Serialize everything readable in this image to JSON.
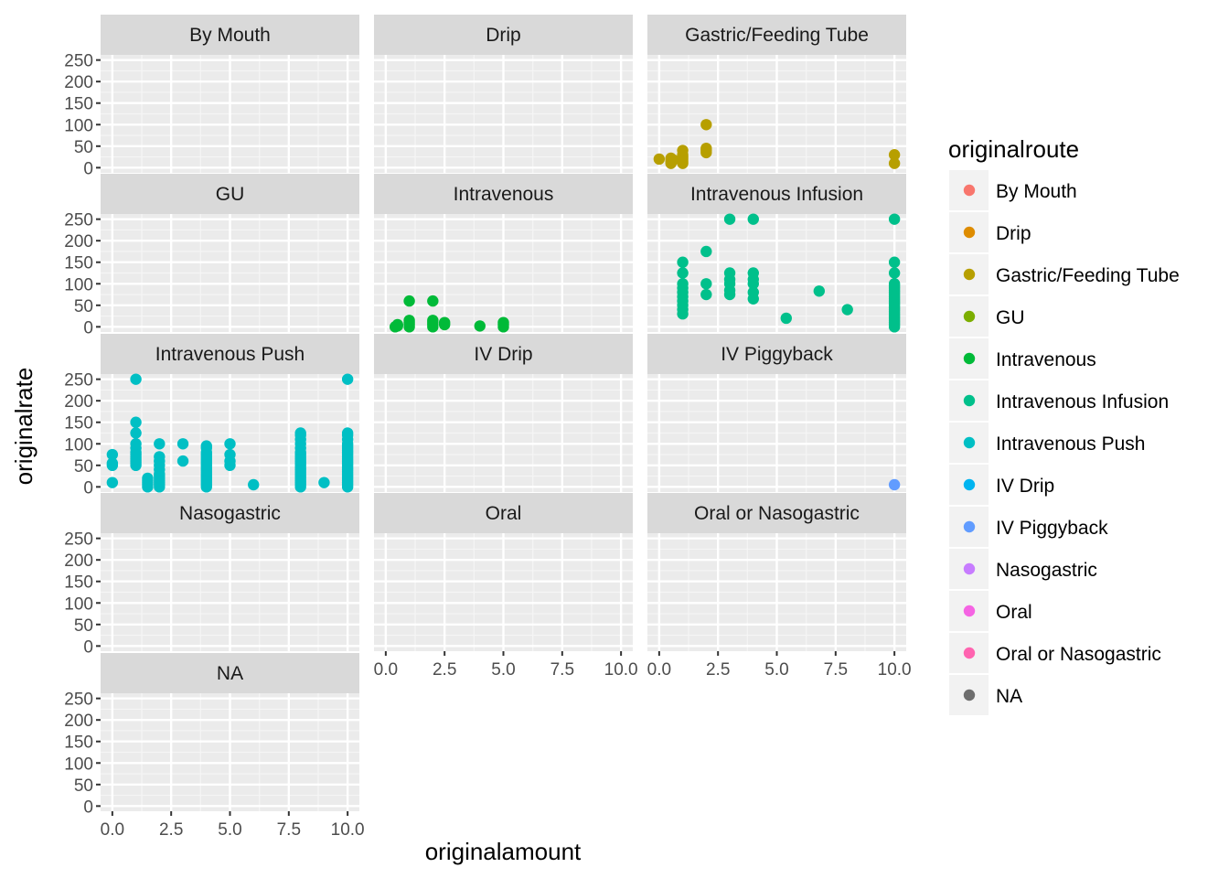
{
  "chart_data": {
    "type": "scatter",
    "xlabel": "originalamount",
    "ylabel": "originalrate",
    "xlim": [
      -0.5,
      10.5
    ],
    "ylim": [
      -12,
      262
    ],
    "x_ticks": [
      0,
      2.5,
      5,
      7.5,
      10
    ],
    "x_tick_labels": [
      "0.0",
      "2.5",
      "5.0",
      "7.5",
      "10.0"
    ],
    "y_ticks": [
      0,
      50,
      100,
      150,
      200,
      250
    ],
    "y_tick_labels": [
      "0",
      "50",
      "100",
      "150",
      "200",
      "250"
    ],
    "grid": true,
    "legend": {
      "title": "originalroute",
      "placement": "right",
      "entries": [
        {
          "name": "By Mouth",
          "color": "#F8766D"
        },
        {
          "name": "Drip",
          "color": "#DE8C00"
        },
        {
          "name": "Gastric/Feeding Tube",
          "color": "#B79F00"
        },
        {
          "name": "GU",
          "color": "#7CAE00"
        },
        {
          "name": "Intravenous",
          "color": "#00BA38"
        },
        {
          "name": "Intravenous Infusion",
          "color": "#00C08B"
        },
        {
          "name": "Intravenous Push",
          "color": "#00BFC4"
        },
        {
          "name": "IV Drip",
          "color": "#00B4F0"
        },
        {
          "name": "IV Piggyback",
          "color": "#619CFF"
        },
        {
          "name": "Nasogastric",
          "color": "#C77CFF"
        },
        {
          "name": "Oral",
          "color": "#F564E3"
        },
        {
          "name": "Oral or Nasogastric",
          "color": "#FF64B0"
        },
        {
          "name": "NA",
          "color": "#6e6e6e"
        }
      ]
    },
    "panels": [
      {
        "name": "By Mouth",
        "points": []
      },
      {
        "name": "Drip",
        "points": []
      },
      {
        "name": "Gastric/Feeding Tube",
        "points": [
          [
            0,
            20
          ],
          [
            0.5,
            10
          ],
          [
            0.5,
            15
          ],
          [
            0.5,
            20
          ],
          [
            0.5,
            22
          ],
          [
            0.6,
            18
          ],
          [
            1,
            10
          ],
          [
            1,
            15
          ],
          [
            1,
            20
          ],
          [
            1,
            25
          ],
          [
            1,
            30
          ],
          [
            1,
            40
          ],
          [
            2,
            35
          ],
          [
            2,
            40
          ],
          [
            2,
            45
          ],
          [
            2,
            100
          ],
          [
            10,
            10
          ],
          [
            10,
            30
          ]
        ]
      },
      {
        "name": "GU",
        "points": []
      },
      {
        "name": "Intravenous",
        "points": [
          [
            0.4,
            0
          ],
          [
            0.5,
            2
          ],
          [
            0.5,
            5
          ],
          [
            1,
            0
          ],
          [
            1,
            5
          ],
          [
            1,
            10
          ],
          [
            1,
            15
          ],
          [
            1,
            60
          ],
          [
            2,
            0
          ],
          [
            2,
            5
          ],
          [
            2,
            10
          ],
          [
            2,
            15
          ],
          [
            2,
            60
          ],
          [
            2.5,
            5
          ],
          [
            2.5,
            10
          ],
          [
            4,
            2
          ],
          [
            5,
            0
          ],
          [
            5,
            5
          ],
          [
            5,
            10
          ]
        ]
      },
      {
        "name": "Intravenous Infusion",
        "points": [
          [
            1,
            30
          ],
          [
            1,
            40
          ],
          [
            1,
            50
          ],
          [
            1,
            60
          ],
          [
            1,
            70
          ],
          [
            1,
            80
          ],
          [
            1,
            90
          ],
          [
            1,
            100
          ],
          [
            1,
            125
          ],
          [
            1,
            150
          ],
          [
            2,
            75
          ],
          [
            2,
            100
          ],
          [
            2,
            175
          ],
          [
            3,
            75
          ],
          [
            3,
            85
          ],
          [
            3,
            100
          ],
          [
            3,
            110
          ],
          [
            3,
            125
          ],
          [
            3,
            250
          ],
          [
            4,
            65
          ],
          [
            4,
            80
          ],
          [
            4,
            100
          ],
          [
            4,
            110
          ],
          [
            4,
            125
          ],
          [
            4,
            250
          ],
          [
            5.4,
            20
          ],
          [
            6.8,
            83
          ],
          [
            8,
            40
          ],
          [
            10,
            0
          ],
          [
            10,
            5
          ],
          [
            10,
            10
          ],
          [
            10,
            15
          ],
          [
            10,
            20
          ],
          [
            10,
            25
          ],
          [
            10,
            30
          ],
          [
            10,
            35
          ],
          [
            10,
            40
          ],
          [
            10,
            45
          ],
          [
            10,
            50
          ],
          [
            10,
            55
          ],
          [
            10,
            60
          ],
          [
            10,
            65
          ],
          [
            10,
            70
          ],
          [
            10,
            75
          ],
          [
            10,
            80
          ],
          [
            10,
            85
          ],
          [
            10,
            90
          ],
          [
            10,
            95
          ],
          [
            10,
            100
          ],
          [
            10,
            125
          ],
          [
            10,
            150
          ],
          [
            10,
            250
          ]
        ]
      },
      {
        "name": "Intravenous Push",
        "points": [
          [
            0,
            10
          ],
          [
            0,
            50
          ],
          [
            0,
            55
          ],
          [
            0,
            75
          ],
          [
            1,
            50
          ],
          [
            1,
            55
          ],
          [
            1,
            60
          ],
          [
            1,
            65
          ],
          [
            1,
            70
          ],
          [
            1,
            75
          ],
          [
            1,
            80
          ],
          [
            1,
            90
          ],
          [
            1,
            100
          ],
          [
            1,
            125
          ],
          [
            1,
            150
          ],
          [
            1,
            250
          ],
          [
            1.5,
            0
          ],
          [
            1.5,
            5
          ],
          [
            1.5,
            10
          ],
          [
            1.5,
            15
          ],
          [
            1.5,
            20
          ],
          [
            2,
            0
          ],
          [
            2,
            5
          ],
          [
            2,
            10
          ],
          [
            2,
            15
          ],
          [
            2,
            20
          ],
          [
            2,
            25
          ],
          [
            2,
            30
          ],
          [
            2,
            40
          ],
          [
            2,
            50
          ],
          [
            2,
            60
          ],
          [
            2,
            70
          ],
          [
            2,
            100
          ],
          [
            3,
            60
          ],
          [
            3,
            100
          ],
          [
            4,
            0
          ],
          [
            4,
            5
          ],
          [
            4,
            10
          ],
          [
            4,
            15
          ],
          [
            4,
            20
          ],
          [
            4,
            25
          ],
          [
            4,
            30
          ],
          [
            4,
            35
          ],
          [
            4,
            40
          ],
          [
            4,
            45
          ],
          [
            4,
            50
          ],
          [
            4,
            55
          ],
          [
            4,
            60
          ],
          [
            4,
            65
          ],
          [
            4,
            70
          ],
          [
            4,
            75
          ],
          [
            4,
            80
          ],
          [
            4,
            90
          ],
          [
            4,
            95
          ],
          [
            5,
            50
          ],
          [
            5,
            60
          ],
          [
            5,
            75
          ],
          [
            5,
            100
          ],
          [
            6,
            5
          ],
          [
            8,
            0
          ],
          [
            8,
            5
          ],
          [
            8,
            10
          ],
          [
            8,
            15
          ],
          [
            8,
            20
          ],
          [
            8,
            25
          ],
          [
            8,
            30
          ],
          [
            8,
            35
          ],
          [
            8,
            40
          ],
          [
            8,
            45
          ],
          [
            8,
            50
          ],
          [
            8,
            55
          ],
          [
            8,
            60
          ],
          [
            8,
            65
          ],
          [
            8,
            70
          ],
          [
            8,
            75
          ],
          [
            8,
            80
          ],
          [
            8,
            90
          ],
          [
            8,
            100
          ],
          [
            8,
            110
          ],
          [
            8,
            120
          ],
          [
            8,
            125
          ],
          [
            9,
            10
          ],
          [
            10,
            0
          ],
          [
            10,
            5
          ],
          [
            10,
            10
          ],
          [
            10,
            15
          ],
          [
            10,
            20
          ],
          [
            10,
            25
          ],
          [
            10,
            30
          ],
          [
            10,
            35
          ],
          [
            10,
            40
          ],
          [
            10,
            45
          ],
          [
            10,
            50
          ],
          [
            10,
            55
          ],
          [
            10,
            60
          ],
          [
            10,
            65
          ],
          [
            10,
            70
          ],
          [
            10,
            75
          ],
          [
            10,
            80
          ],
          [
            10,
            85
          ],
          [
            10,
            90
          ],
          [
            10,
            95
          ],
          [
            10,
            100
          ],
          [
            10,
            110
          ],
          [
            10,
            120
          ],
          [
            10,
            125
          ],
          [
            10,
            250
          ]
        ]
      },
      {
        "name": "IV Drip",
        "points": []
      },
      {
        "name": "IV Piggyback",
        "points": [
          [
            10,
            5
          ]
        ]
      },
      {
        "name": "Nasogastric",
        "points": []
      },
      {
        "name": "Oral",
        "points": []
      },
      {
        "name": "Oral or Nasogastric",
        "points": []
      },
      {
        "name": "NA",
        "points": []
      }
    ]
  }
}
